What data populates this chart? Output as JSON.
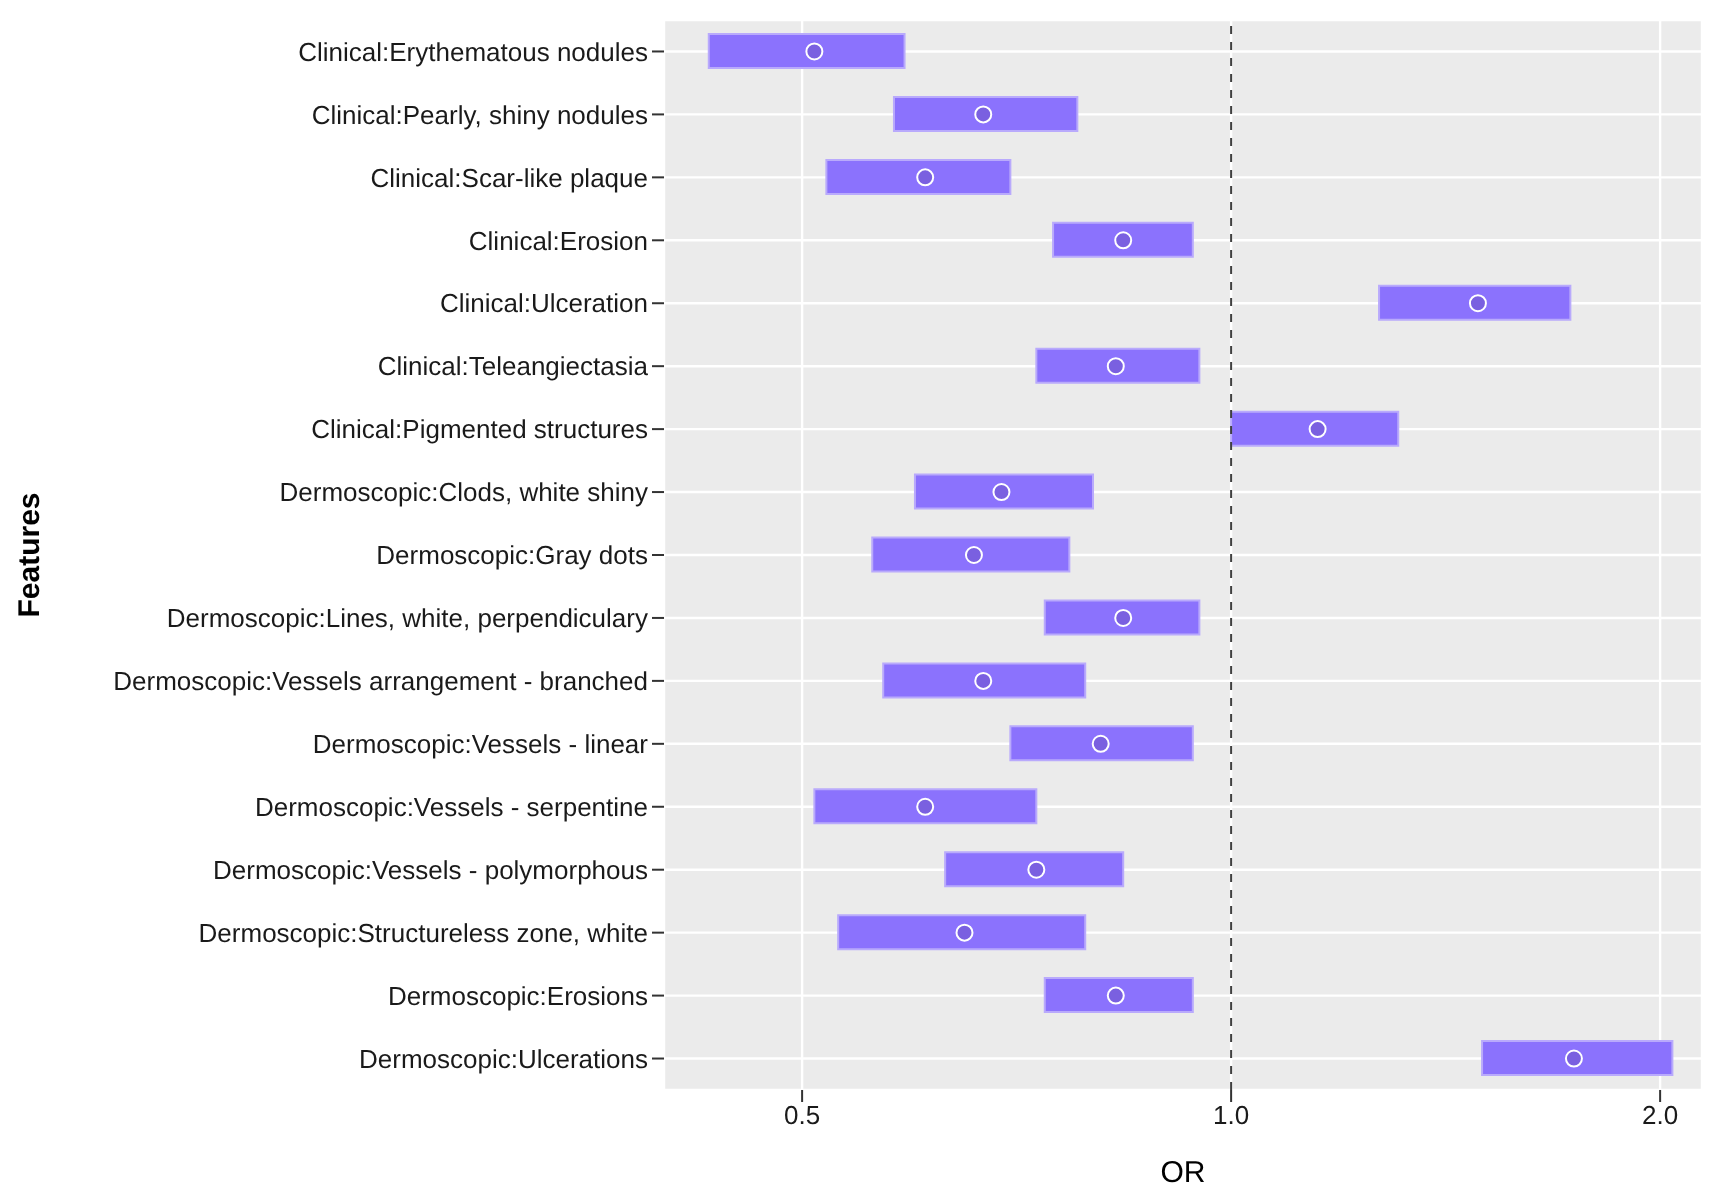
{
  "chart_data": {
    "type": "bar",
    "orientation": "horizontal",
    "xlabel": "OR",
    "ylabel": "Features",
    "log": "x",
    "categories": [
      "Clinical:Erythematous nodules",
      "Clinical:Pearly, shiny nodules",
      "Clinical:Scar-like plaque",
      "Clinical:Erosion",
      "Clinical:Ulceration",
      "Clinical:Teleangiectasia",
      "Clinical:Pigmented structures",
      "Dermoscopic:Clods, white shiny",
      "Dermoscopic:Gray dots",
      "Dermoscopic:Lines, white, perpendiculary",
      "Dermoscopic:Vessels arrangement - branched",
      "Dermoscopic:Vessels - linear",
      "Dermoscopic:Vessels - serpentine",
      "Dermoscopic:Vessels - polymorphous",
      "Dermoscopic:Structureless zone, white",
      "Dermoscopic:Erosions",
      "Dermoscopic:Ulcerations"
    ],
    "series": [
      {
        "color": "#8b72fd",
        "base": [
          0.43,
          0.58,
          0.52,
          0.75,
          1.27,
          0.73,
          1.0,
          0.6,
          0.56,
          0.74,
          0.57,
          0.7,
          0.51,
          0.63,
          0.53,
          0.74,
          1.5
        ],
        "values": [
          0.16,
          0.2,
          0.18,
          0.19,
          0.46,
          0.22,
          0.31,
          0.2,
          0.21,
          0.21,
          0.22,
          0.24,
          0.22,
          0.21,
          0.26,
          0.2,
          0.54
        ]
      },
      {
        "type": "scatter",
        "color": "#7a60e0",
        "values": [
          0.51,
          0.67,
          0.61,
          0.84,
          1.49,
          0.83,
          1.15,
          0.69,
          0.66,
          0.84,
          0.67,
          0.81,
          0.61,
          0.73,
          0.65,
          0.83,
          1.74
        ]
      }
    ],
    "xlim": [
      0.4,
      2.14
    ],
    "xticks": [
      {
        "value": 0.5,
        "label": "0.5"
      },
      {
        "value": 1,
        "label": "1.0"
      },
      {
        "value": 2,
        "label": "2.0"
      }
    ],
    "grid": true,
    "marker": "circle",
    "ref_lines": [
      {
        "axis": "x",
        "value": 1,
        "line_style": "dashed",
        "color": "#404040"
      }
    ]
  }
}
